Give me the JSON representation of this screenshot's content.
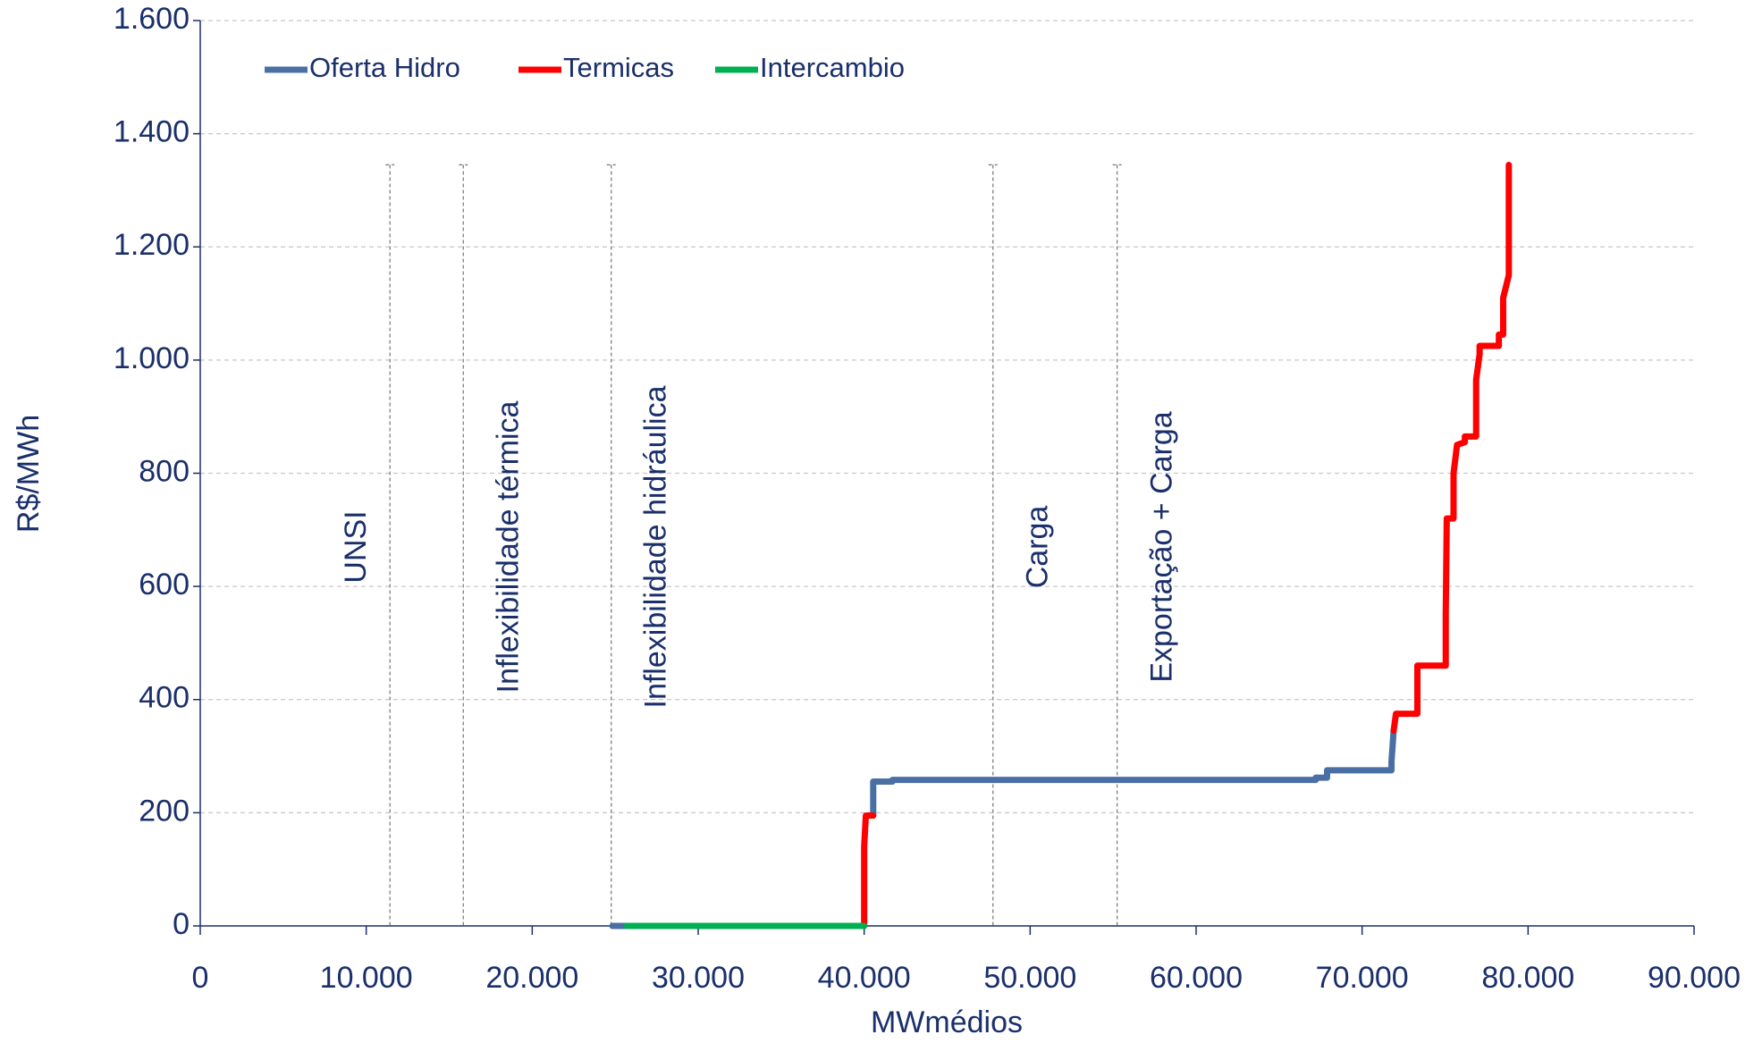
{
  "chart_data": {
    "type": "line",
    "xlabel": "MWmédios",
    "ylabel": "R$/MWh",
    "xlim": [
      0,
      90000
    ],
    "ylim": [
      0,
      1600
    ],
    "xticks": [
      0,
      {
        "value": 10000,
        "label": "10.000"
      },
      {
        "value": 20000,
        "label": "20.000"
      },
      {
        "value": 30000,
        "label": "30.000"
      },
      {
        "value": 40000,
        "label": "40.000"
      },
      {
        "value": 50000,
        "label": "50.000"
      },
      {
        "value": 60000,
        "label": "60.000"
      },
      {
        "value": 70000,
        "label": "70.000"
      },
      {
        "value": 80000,
        "label": "80.000"
      },
      {
        "value": 90000,
        "label": "90.000"
      }
    ],
    "yticks": [
      0,
      200,
      400,
      600,
      800,
      {
        "value": 1000,
        "label": "1.000"
      },
      {
        "value": 1200,
        "label": "1.200"
      },
      {
        "value": 1400,
        "label": "1.400"
      },
      {
        "value": 1600,
        "label": "1.600"
      }
    ],
    "grid": true,
    "legend": "top-left",
    "series": [
      {
        "name": "Oferta Hidro",
        "color": "#4a6fa5",
        "x": [
          24830,
          25700,
          33000,
          40545,
          40545,
          41700,
          41700,
          67210,
          67210,
          67890,
          67890,
          71770,
          71770,
          71900
        ],
        "values": [
          0,
          0,
          null,
          195,
          255,
          255,
          258,
          258,
          262,
          262,
          275,
          275,
          290,
          345
        ]
      },
      {
        "name": "Termicas",
        "color": "#ff0000",
        "x": [
          40000,
          40000,
          40100,
          40545,
          60000,
          71900,
          72040,
          73330,
          73330,
          75040,
          75040,
          75100,
          75510,
          75510,
          75720,
          76190,
          76190,
          76870,
          76870,
          77080,
          77080,
          78240,
          78240,
          78500,
          78500,
          78840,
          78840
        ],
        "values": [
          0,
          140,
          195,
          195,
          null,
          345,
          375,
          375,
          460,
          460,
          550,
          720,
          720,
          800,
          850,
          855,
          865,
          865,
          965,
          1010,
          1025,
          1025,
          1045,
          1045,
          1110,
          1150,
          1345
        ]
      },
      {
        "name": "Intercambio",
        "color": "#00b050",
        "x": [
          25700,
          40000
        ],
        "values": [
          0,
          0
        ]
      }
    ],
    "annotations": [
      {
        "x": 11430,
        "y_top": 1345,
        "label": "UNSI"
      },
      {
        "x": 15850,
        "y_top": 1345,
        "label": "Inflexibilidade térmica"
      },
      {
        "x": 24760,
        "y_top": 1345,
        "label": "Inflexibilidade hidráulica"
      },
      {
        "x": 47760,
        "y_top": 1345,
        "label": "Carga"
      },
      {
        "x": 55240,
        "y_top": 1345,
        "label": "Exportação + Carga"
      }
    ]
  }
}
